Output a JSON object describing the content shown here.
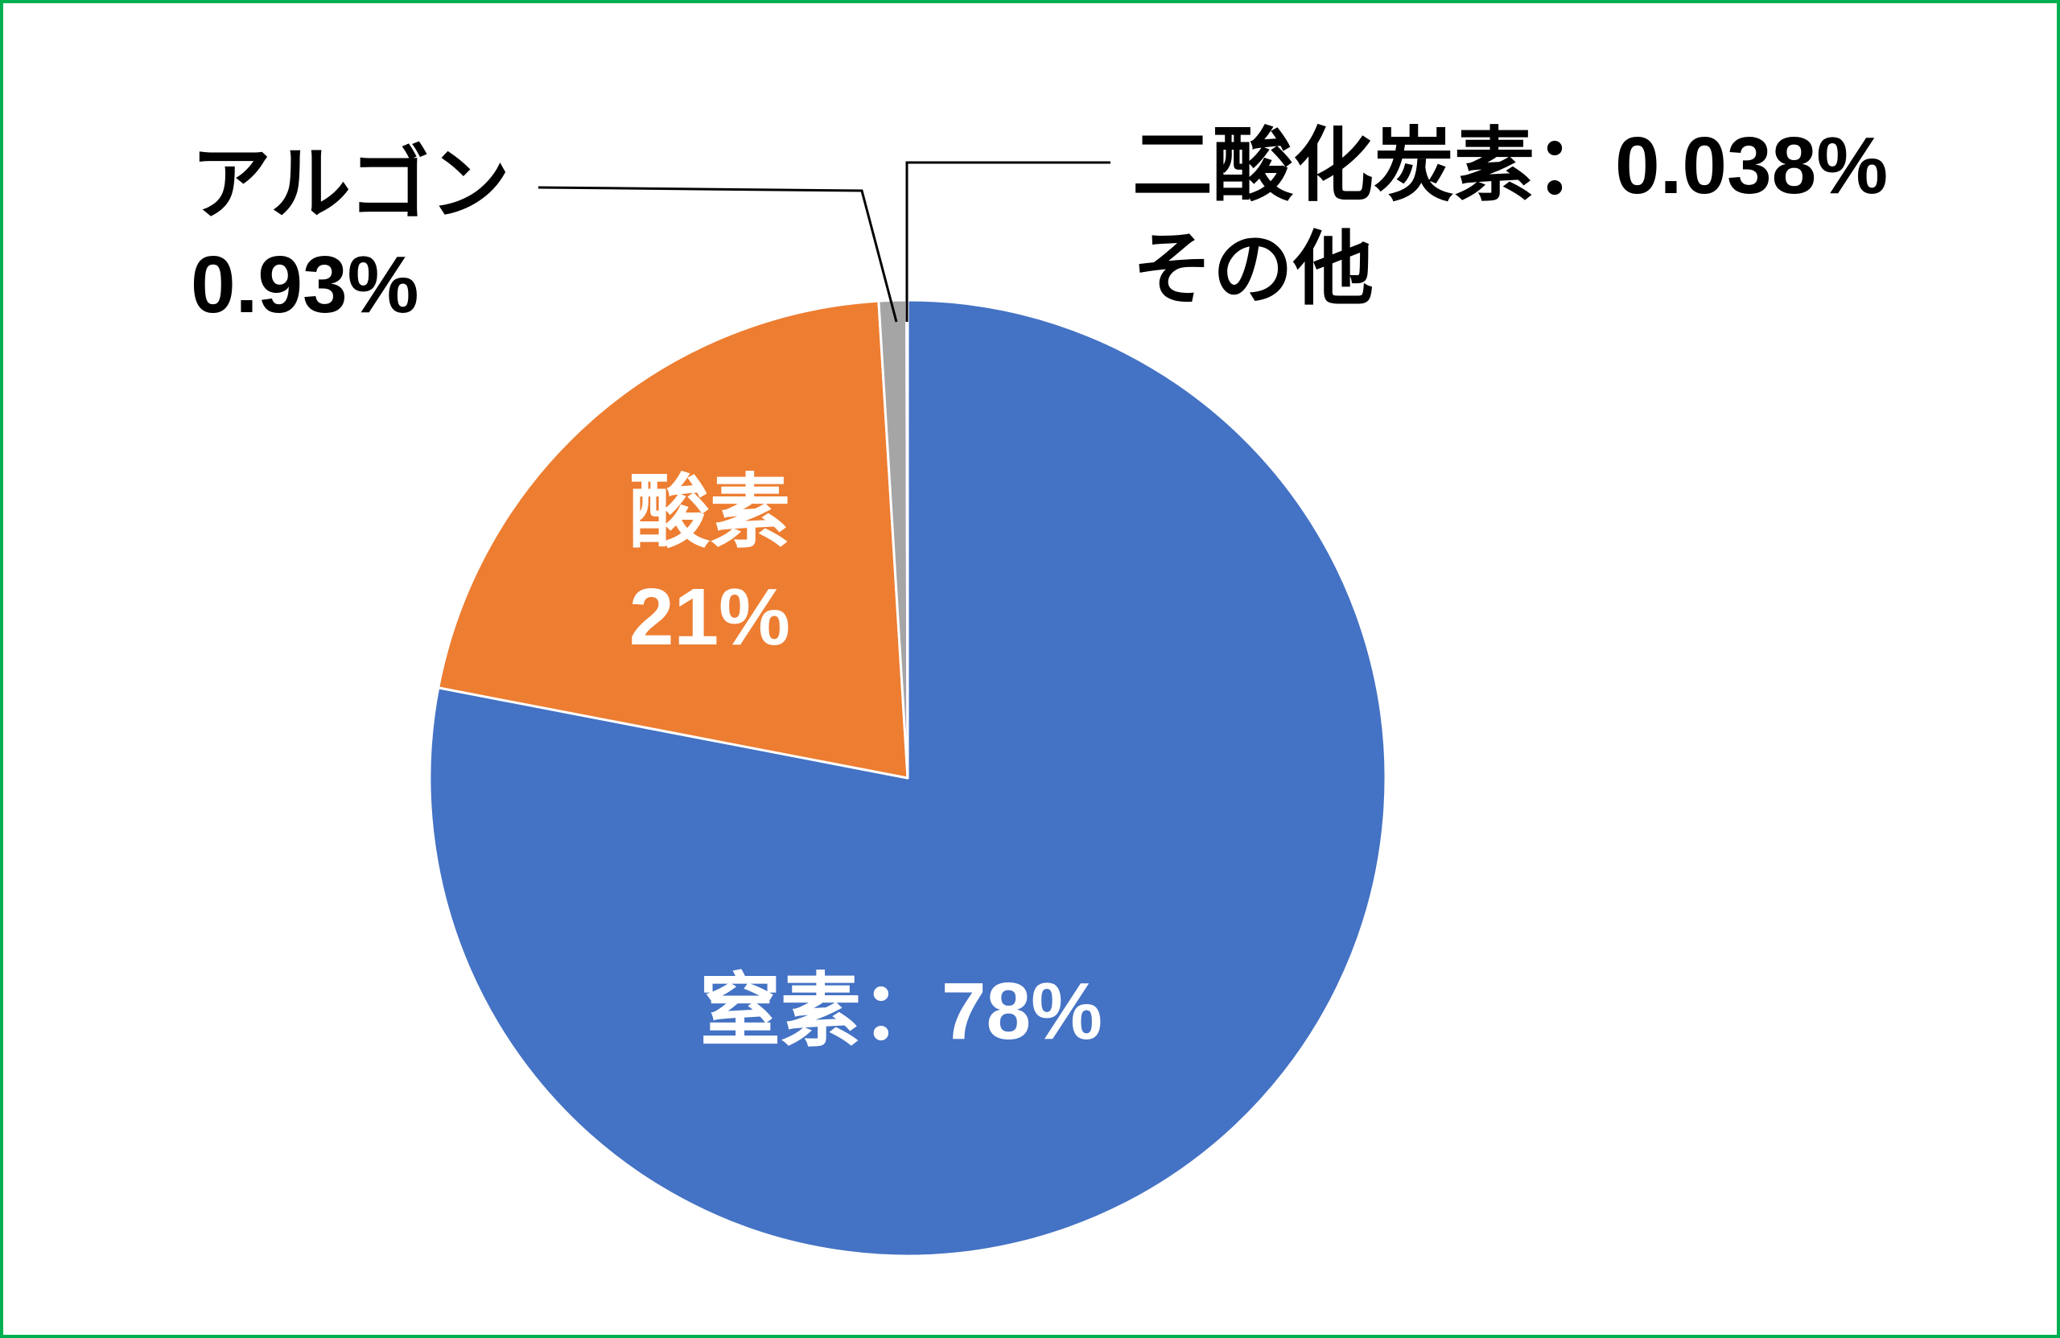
{
  "chart_data": {
    "type": "pie",
    "title": "",
    "start_angle_deg": 0,
    "clockwise": true,
    "slices": [
      {
        "name": "窒素",
        "value": 78,
        "value_label": "78%",
        "color": "#4472C4"
      },
      {
        "name": "酸素",
        "value": 21,
        "value_label": "21%",
        "color": "#ED7D31"
      },
      {
        "name": "アルゴン",
        "value": 0.93,
        "value_label": "0.93%",
        "color": "#A5A5A5"
      },
      {
        "name": "二酸化炭素",
        "value": 0.038,
        "value_label": "0.038%",
        "name_extra": "その他",
        "color": "#FFC000"
      }
    ],
    "label_separator": "：",
    "slice_border_color": "#FFFFFF",
    "leader_line_color": "#000000",
    "label_colors": {
      "inside": "#FFFFFF",
      "outside": "#000000"
    }
  },
  "frame": {
    "border_color": "#00B050",
    "background": "#FFFFFF"
  }
}
